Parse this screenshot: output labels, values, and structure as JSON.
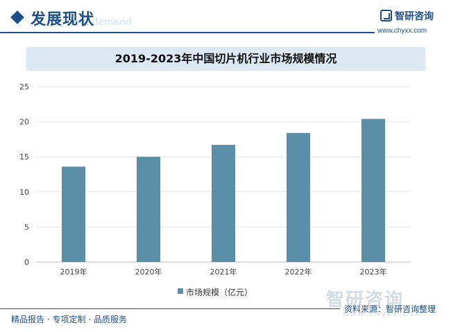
{
  "header": {
    "section_title": "发展现状",
    "section_subtitle": "nd demand"
  },
  "brand": {
    "name": "智研咨询",
    "url": "www.chyxx.com"
  },
  "watermark": {
    "name": "智研咨询",
    "url": "www.chyxx.com"
  },
  "chart_data": {
    "type": "bar",
    "title": "2019-2023年中国切片机行业市场规模情况",
    "categories": [
      "2019年",
      "2020年",
      "2021年",
      "2022年",
      "2023年"
    ],
    "series": [
      {
        "name": "市场规模（亿元）",
        "values": [
          13.6,
          15.0,
          16.7,
          18.4,
          20.4
        ]
      }
    ],
    "yticks": [
      "0",
      "5",
      "10",
      "15",
      "20",
      "25"
    ],
    "ylim": [
      0,
      25
    ],
    "xlabel": "",
    "ylabel": "",
    "grid": true,
    "legend": "bottom-center",
    "bar_color": "#5b8fa8"
  },
  "source": "资料来源：智研咨询整理",
  "footer": "精品报告 · 专项定制 · 品质服务",
  "colors": {
    "accent": "#1b4f8a",
    "title_band": "#dce9f4"
  }
}
